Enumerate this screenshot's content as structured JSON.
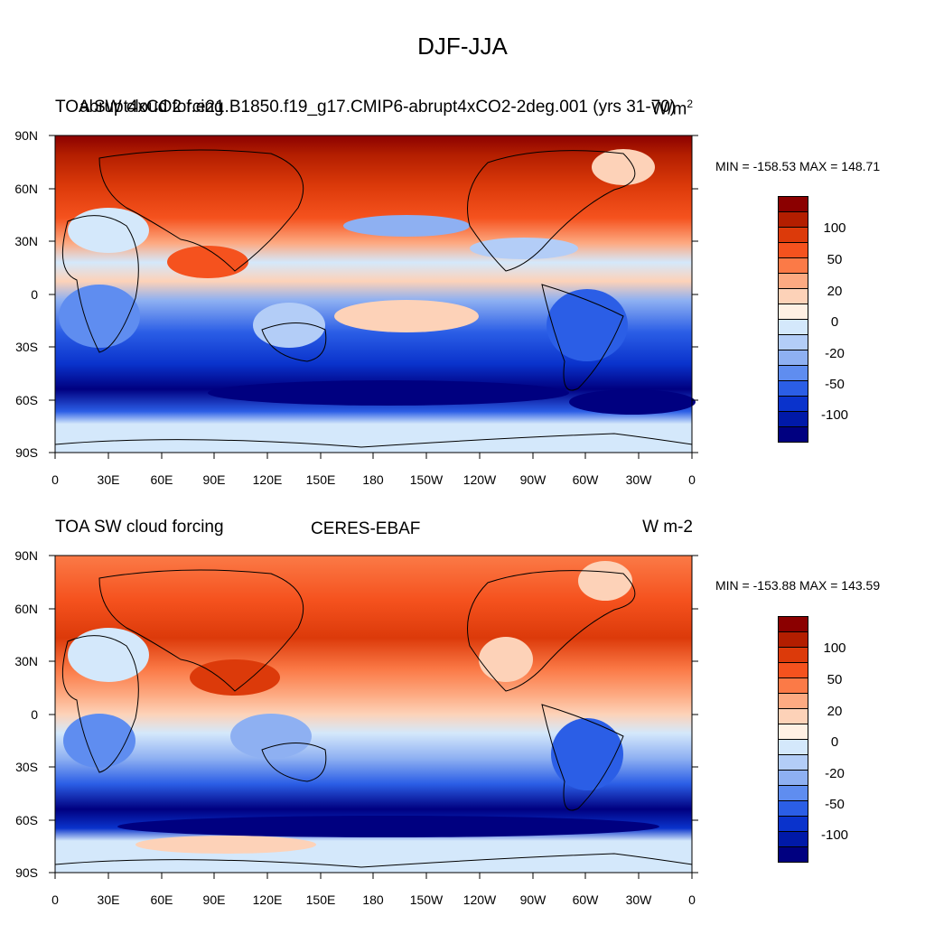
{
  "title": "DJF-JJA",
  "panels": [
    {
      "left_label": "TOA SW cloud forcing",
      "center_label": "abrupt4xCO2 f.e21.B1850.f19_g17.CMIP6-abrupt4xCO2-2deg.001 (yrs 31-70)",
      "right_label": "W/m",
      "right_sup": "2",
      "minmax": "MIN = -158.53 MAX = 148.71"
    },
    {
      "left_label": "TOA SW cloud forcing",
      "center_label": "CERES-EBAF",
      "right_label": "W m-2",
      "minmax": "MIN = -153.88 MAX = 143.59"
    }
  ],
  "axes": {
    "lat_ticks": [
      "90N",
      "60N",
      "30N",
      "0",
      "30S",
      "60S",
      "90S"
    ],
    "lon_ticks": [
      "0",
      "30E",
      "60E",
      "90E",
      "120E",
      "150E",
      "180",
      "150W",
      "120W",
      "90W",
      "60W",
      "30W",
      "0"
    ]
  },
  "colorbar": {
    "colors": [
      "#8b0000",
      "#b31e00",
      "#dc3a0a",
      "#f5521e",
      "#fb7a47",
      "#fdaa82",
      "#fdd2b8",
      "#fff0e4",
      "#d4e8fb",
      "#b3cdf7",
      "#8eb0f2",
      "#5f8df0",
      "#2b5ee6",
      "#0a33cc",
      "#0019a8",
      "#000080"
    ],
    "labels": [
      "100",
      "50",
      "20",
      "0",
      "-20",
      "-50",
      "-100"
    ]
  }
}
